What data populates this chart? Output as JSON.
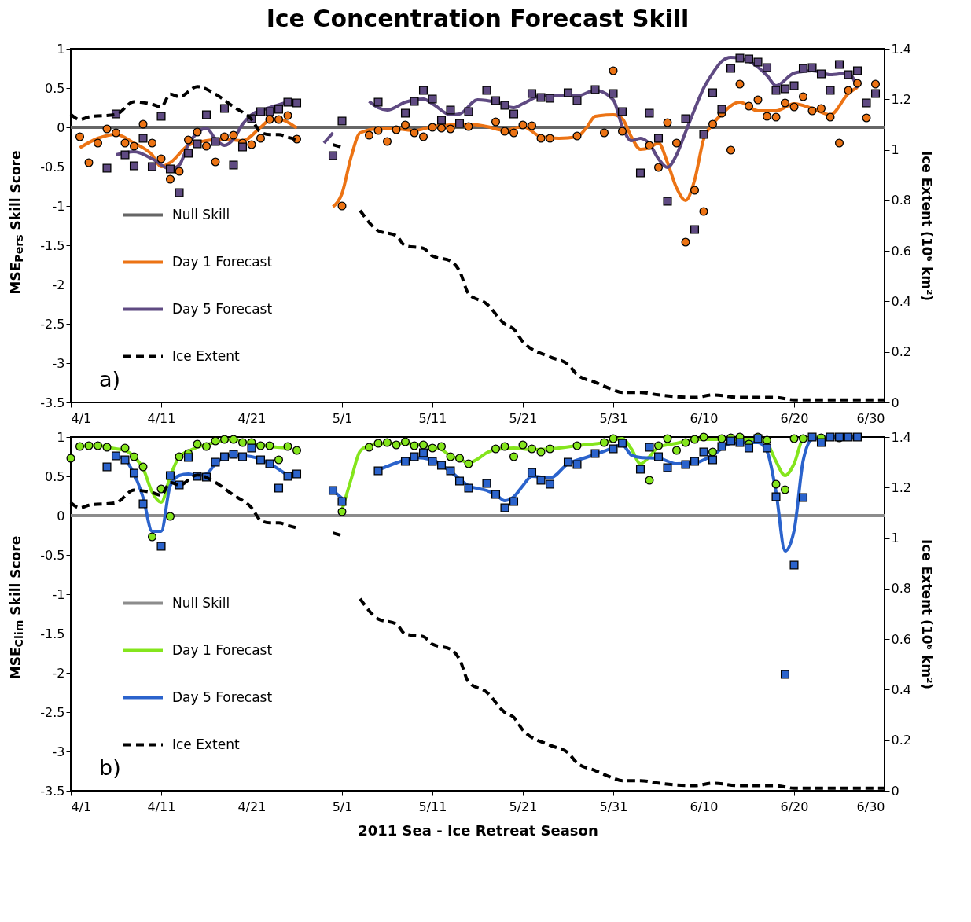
{
  "chart_data": [
    {
      "type": "line",
      "title": "Ice Concentration Forecast Skill",
      "ylabel": "MSE$_{Pers}$ Skill Score",
      "y2label": "Ice Extent (10⁶ km²)",
      "annotations": [
        "a)"
      ],
      "legend": "left",
      "xlim": [
        "--04-01",
        "--06-30"
      ],
      "xticks": [
        {
          "value": "--04-01",
          "label": "4/1"
        },
        {
          "value": "--04-11",
          "label": "4/11"
        },
        {
          "value": "--04-21",
          "label": "4/21"
        },
        {
          "value": "--05-01",
          "label": "5/1"
        },
        {
          "value": "--05-11",
          "label": "5/11"
        },
        {
          "value": "--05-21",
          "label": "5/21"
        },
        {
          "value": "--05-31",
          "label": "5/31"
        },
        {
          "value": "--06-10",
          "label": "6/10"
        },
        {
          "value": "--06-20",
          "label": "6/20"
        },
        {
          "value": "--06-30",
          "label": "6/30"
        }
      ],
      "ylim": [
        -3.5,
        1
      ],
      "yticks": [
        -3.5,
        -3,
        -2.5,
        -2,
        -1.5,
        -1,
        -0.5,
        0,
        0.5,
        1
      ],
      "y2lim": [
        0,
        1.4
      ],
      "y2ticks": [
        0,
        0.2,
        0.4,
        0.6,
        0.8,
        1,
        1.2,
        1.4
      ],
      "x": [
        "--04-02",
        "--04-03",
        "--04-04",
        "--04-05",
        "--04-06",
        "--04-07",
        "--04-08",
        "--04-09",
        "--04-10",
        "--04-11",
        "--04-12",
        "--04-13",
        "--04-14",
        "--04-15",
        "--04-16",
        "--04-17",
        "--04-18",
        "--04-19",
        "--04-20",
        "--04-21",
        "--04-22",
        "--04-23",
        "--04-24",
        "--04-25",
        "--04-26",
        "--04-27",
        "--04-28",
        "--04-29",
        "--04-30",
        "--05-01",
        "--05-02",
        "--05-03",
        "--05-04",
        "--05-05",
        "--05-06",
        "--05-07",
        "--05-08",
        "--05-09",
        "--05-10",
        "--05-11",
        "--05-12",
        "--05-13",
        "--05-14",
        "--05-15",
        "--05-16",
        "--05-17",
        "--05-18",
        "--05-19",
        "--05-20",
        "--05-21",
        "--05-22",
        "--05-23",
        "--05-24",
        "--05-25",
        "--05-26",
        "--05-27",
        "--05-28",
        "--05-29",
        "--05-30",
        "--05-31",
        "--06-01",
        "--06-02",
        "--06-03",
        "--06-04",
        "--06-05",
        "--06-06",
        "--06-07",
        "--06-08",
        "--06-09",
        "--06-10",
        "--06-11",
        "--06-12",
        "--06-13",
        "--06-14",
        "--06-15",
        "--06-16",
        "--06-17",
        "--06-18",
        "--06-19",
        "--06-20",
        "--06-21",
        "--06-22",
        "--06-23",
        "--06-24",
        "--06-25",
        "--06-26",
        "--06-27",
        "--06-28",
        "--06-29"
      ],
      "series": [
        {
          "name": "Null Skill",
          "type": "line",
          "color": "#666666",
          "x": [
            "--04-01",
            "--06-30"
          ],
          "values": [
            0,
            0
          ]
        },
        {
          "name": "Day 1 Forecast",
          "type": "line",
          "color": "#ec7314",
          "x": [
            "--04-02",
            "--04-04",
            "--04-06",
            "--04-08",
            "--04-10",
            "--04-11",
            "--04-12",
            "--04-14",
            "--04-16",
            "--04-18",
            "--04-20",
            "--04-22",
            "--04-23",
            "--04-24",
            "--04-26",
            "--04-28",
            "--04-30",
            "--05-01",
            "--05-02",
            "--05-03",
            "--05-05",
            "--05-07",
            "--05-09",
            "--05-11",
            "--05-13",
            "--05-15",
            "--05-17",
            "--05-19",
            "--05-21",
            "--05-23",
            "--05-25",
            "--05-27",
            "--05-28",
            "--05-29",
            "--05-31",
            "--06-01",
            "--06-02",
            "--06-03",
            "--06-04",
            "--06-05",
            "--06-06",
            "--06-07",
            "--06-08",
            "--06-09",
            "--06-10",
            "--06-11",
            "--06-12",
            "--06-14",
            "--06-16",
            "--06-18",
            "--06-20",
            "--06-22",
            "--06-24",
            "--06-26",
            "--06-27"
          ],
          "values": [
            -0.26,
            -0.14,
            -0.09,
            -0.2,
            -0.35,
            -0.5,
            -0.45,
            -0.23,
            -0.17,
            -0.15,
            -0.17,
            0.0,
            0.09,
            0.1,
            -0.01,
            null,
            -1.01,
            -0.84,
            -0.38,
            -0.07,
            -0.02,
            -0.02,
            -0.04,
            0.01,
            0.03,
            0.04,
            0.01,
            -0.04,
            0.01,
            -0.12,
            -0.14,
            -0.12,
            -0.01,
            0.14,
            0.16,
            0.11,
            -0.12,
            -0.28,
            -0.26,
            -0.2,
            -0.45,
            -0.77,
            -0.93,
            -0.67,
            -0.15,
            0.04,
            0.17,
            0.32,
            0.21,
            0.21,
            0.3,
            0.24,
            0.16,
            0.43,
            0.51
          ]
        },
        {
          "name": "Day 5 Forecast",
          "type": "line",
          "color": "#5f4a82",
          "x": [
            "--04-06",
            "--04-08",
            "--04-10",
            "--04-12",
            "--04-13",
            "--04-14",
            "--04-15",
            "--04-16",
            "--04-17",
            "--04-18",
            "--04-19",
            "--04-20",
            "--04-21",
            "--04-23",
            "--04-25",
            "--04-27",
            "--04-29",
            "--04-30",
            "--05-02",
            "--05-04",
            "--05-05",
            "--05-06",
            "--05-08",
            "--05-10",
            "--05-11",
            "--05-13",
            "--05-14",
            "--05-16",
            "--05-18",
            "--05-20",
            "--05-21",
            "--05-23",
            "--05-25",
            "--05-27",
            "--05-29",
            "--05-31",
            "--06-01",
            "--06-02",
            "--06-03",
            "--06-04",
            "--06-05",
            "--06-06",
            "--06-07",
            "--06-08",
            "--06-09",
            "--06-10",
            "--06-11",
            "--06-12",
            "--06-13",
            "--06-15",
            "--06-17",
            "--06-18",
            "--06-20",
            "--06-22",
            "--06-24",
            "--06-26",
            "--06-27"
          ],
          "values": [
            -0.35,
            -0.31,
            -0.4,
            -0.53,
            -0.48,
            -0.22,
            -0.07,
            -0.01,
            -0.15,
            -0.23,
            -0.15,
            0.04,
            0.16,
            0.25,
            0.32,
            null,
            -0.2,
            -0.07,
            null,
            0.33,
            0.25,
            0.22,
            0.32,
            0.36,
            0.3,
            0.16,
            0.17,
            0.35,
            0.32,
            0.25,
            0.3,
            0.4,
            0.4,
            0.4,
            0.47,
            0.35,
            0.01,
            -0.17,
            -0.14,
            -0.21,
            -0.4,
            -0.51,
            -0.35,
            -0.06,
            0.23,
            0.5,
            0.69,
            0.84,
            0.89,
            0.84,
            0.66,
            0.53,
            0.69,
            0.72,
            0.67,
            0.69,
            0.5
          ]
        },
        {
          "type": "scatter",
          "marker": "circle",
          "color": "#ec7314",
          "values": [
            -0.12,
            -0.45,
            -0.2,
            -0.02,
            -0.07,
            -0.2,
            -0.24,
            0.04,
            -0.2,
            -0.4,
            -0.66,
            -0.56,
            -0.16,
            -0.06,
            -0.24,
            -0.44,
            -0.12,
            -0.1,
            -0.2,
            -0.22,
            -0.14,
            0.1,
            0.1,
            0.15,
            -0.15,
            null,
            null,
            null,
            null,
            -1.0,
            null,
            null,
            -0.1,
            -0.04,
            -0.18,
            -0.03,
            0.03,
            -0.07,
            -0.12,
            0.0,
            -0.01,
            -0.02,
            null,
            0.01,
            null,
            null,
            0.07,
            -0.05,
            -0.07,
            0.03,
            0.02,
            -0.14,
            -0.14,
            null,
            null,
            -0.11,
            null,
            null,
            -0.07,
            0.72,
            -0.05,
            null,
            null,
            -0.23,
            -0.51,
            0.06,
            -0.2,
            -1.46,
            -0.8,
            -1.07,
            0.04,
            0.18,
            -0.29,
            0.55,
            0.27,
            0.35,
            0.14,
            0.13,
            0.31,
            0.26,
            0.39,
            0.21,
            0.24,
            0.13,
            -0.2,
            0.47,
            0.56,
            0.12,
            0.55
          ]
        },
        {
          "type": "scatter",
          "marker": "square",
          "color": "#5f4a82",
          "values": [
            null,
            null,
            null,
            -0.52,
            0.17,
            -0.35,
            -0.49,
            -0.14,
            -0.5,
            0.14,
            -0.53,
            -0.83,
            -0.33,
            -0.21,
            0.16,
            -0.18,
            0.24,
            -0.48,
            -0.25,
            0.11,
            0.2,
            0.2,
            0.23,
            0.32,
            0.31,
            null,
            null,
            null,
            -0.36,
            0.08,
            null,
            null,
            null,
            0.32,
            null,
            null,
            0.18,
            0.33,
            0.47,
            0.36,
            0.09,
            0.22,
            0.05,
            0.2,
            null,
            0.47,
            0.34,
            0.28,
            0.17,
            null,
            0.43,
            0.38,
            0.37,
            null,
            0.44,
            0.34,
            null,
            0.48,
            null,
            0.43,
            0.2,
            null,
            -0.58,
            0.18,
            -0.14,
            -0.94,
            null,
            0.11,
            -1.3,
            -0.09,
            0.44,
            0.23,
            0.75,
            0.88,
            0.87,
            0.83,
            0.76,
            0.47,
            0.49,
            0.53,
            0.75,
            0.76,
            0.68,
            0.47,
            0.8,
            0.67,
            0.72,
            0.31,
            0.43
          ]
        },
        {
          "name": "Ice Extent",
          "type": "line",
          "axis": "y2",
          "line_style": "dashed",
          "color": "#000000",
          "x": [
            "--04-01",
            "--04-02",
            "--04-03",
            "--04-06",
            "--04-08",
            "--04-10",
            "--04-11",
            "--04-12",
            "--04-13",
            "--04-15",
            "--04-17",
            "--04-19",
            "--04-21",
            "--04-22",
            "--04-23",
            "--04-24",
            "--04-25",
            "--04-26",
            "--04-27",
            "--04-30",
            "--05-01",
            "--05-02",
            "--05-03",
            "--05-05",
            "--05-07",
            "--05-08",
            "--05-10",
            "--05-11",
            "--05-13",
            "--05-14",
            "--05-15",
            "--05-17",
            "--05-19",
            "--05-20",
            "--05-21",
            "--05-24",
            "--05-26",
            "--05-27",
            "--05-29",
            "--05-31",
            "--06-01",
            "--06-03",
            "--06-05",
            "--06-09",
            "--06-11",
            "--06-14",
            "--06-18",
            "--06-20",
            "--06-30"
          ],
          "values": [
            1.14,
            1.12,
            1.13,
            1.14,
            1.19,
            1.18,
            1.17,
            1.22,
            1.21,
            1.25,
            1.22,
            1.17,
            1.12,
            1.07,
            1.06,
            1.06,
            1.05,
            1.04,
            null,
            1.02,
            1.01,
            null,
            0.76,
            0.68,
            0.66,
            0.62,
            0.61,
            0.58,
            0.56,
            0.52,
            0.43,
            0.39,
            0.31,
            0.29,
            0.24,
            0.18,
            0.15,
            0.11,
            0.08,
            0.05,
            0.04,
            0.04,
            0.03,
            0.02,
            0.03,
            0.02,
            0.02,
            0.01,
            0.01
          ]
        }
      ]
    },
    {
      "type": "line",
      "xlabel": "2011 Sea - Ice Retreat Season",
      "ylabel": "MSE$_{Clim}$ Skill Score",
      "y2label": "Ice Extent (10⁶ km²)",
      "annotations": [
        "b)"
      ],
      "legend": "left",
      "xlim": [
        "--04-01",
        "--06-30"
      ],
      "xticks": [
        {
          "value": "--04-01",
          "label": "4/1"
        },
        {
          "value": "--04-11",
          "label": "4/11"
        },
        {
          "value": "--04-21",
          "label": "4/21"
        },
        {
          "value": "--05-01",
          "label": "5/1"
        },
        {
          "value": "--05-11",
          "label": "5/11"
        },
        {
          "value": "--05-21",
          "label": "5/21"
        },
        {
          "value": "--05-31",
          "label": "5/31"
        },
        {
          "value": "--06-10",
          "label": "6/10"
        },
        {
          "value": "--06-20",
          "label": "6/20"
        },
        {
          "value": "--06-30",
          "label": "6/30"
        }
      ],
      "ylim": [
        -3.5,
        1
      ],
      "yticks": [
        -3.5,
        -3,
        -2.5,
        -2,
        -1.5,
        -1,
        -0.5,
        0,
        0.5,
        1
      ],
      "y2lim": [
        0,
        1.4
      ],
      "y2ticks": [
        0,
        0.2,
        0.4,
        0.6,
        0.8,
        1,
        1.2,
        1.4
      ],
      "x": [
        "--04-01",
        "--04-02",
        "--04-03",
        "--04-04",
        "--04-05",
        "--04-06",
        "--04-07",
        "--04-08",
        "--04-09",
        "--04-10",
        "--04-11",
        "--04-12",
        "--04-13",
        "--04-14",
        "--04-15",
        "--04-16",
        "--04-17",
        "--04-18",
        "--04-19",
        "--04-20",
        "--04-21",
        "--04-22",
        "--04-23",
        "--04-24",
        "--04-25",
        "--04-26",
        "--04-27",
        "--04-28",
        "--04-29",
        "--04-30",
        "--05-01",
        "--05-02",
        "--05-03",
        "--05-04",
        "--05-05",
        "--05-06",
        "--05-07",
        "--05-08",
        "--05-09",
        "--05-10",
        "--05-11",
        "--05-12",
        "--05-13",
        "--05-14",
        "--05-15",
        "--05-16",
        "--05-17",
        "--05-18",
        "--05-19",
        "--05-20",
        "--05-21",
        "--05-22",
        "--05-23",
        "--05-24",
        "--05-25",
        "--05-26",
        "--05-27",
        "--05-28",
        "--05-29",
        "--05-30",
        "--05-31",
        "--06-01",
        "--06-02",
        "--06-03",
        "--06-04",
        "--06-05",
        "--06-06",
        "--06-07",
        "--06-08",
        "--06-09",
        "--06-10",
        "--06-11",
        "--06-12",
        "--06-13",
        "--06-14",
        "--06-15",
        "--06-16",
        "--06-17",
        "--06-18",
        "--06-19",
        "--06-20",
        "--06-21",
        "--06-22",
        "--06-23",
        "--06-24",
        "--06-25",
        "--06-26",
        "--06-27"
      ],
      "series": [
        {
          "name": "Null Skill",
          "type": "line",
          "color": "#8c8c8c",
          "x": [
            "--04-01",
            "--06-30"
          ],
          "values": [
            0,
            0
          ]
        },
        {
          "name": "Day 1 Forecast",
          "type": "line",
          "color": "#84e51c",
          "x": [
            "--04-02",
            "--04-04",
            "--04-06",
            "--04-07",
            "--04-08",
            "--04-09",
            "--04-10",
            "--04-11",
            "--04-12",
            "--04-13",
            "--04-14",
            "--04-15",
            "--04-17",
            "--04-19",
            "--04-21",
            "--04-23",
            "--04-25",
            "--04-27",
            "--05-01",
            "--05-02",
            "--05-03",
            "--05-04",
            "--05-06",
            "--05-08",
            "--05-10",
            "--05-12",
            "--05-13",
            "--05-14",
            "--05-15",
            "--05-16",
            "--05-17",
            "--05-18",
            "--05-20",
            "--05-22",
            "--05-24",
            "--05-27",
            "--05-30",
            "--06-01",
            "--06-02",
            "--06-03",
            "--06-04",
            "--06-05",
            "--06-07",
            "--06-09",
            "--06-11",
            "--06-13",
            "--06-16",
            "--06-17",
            "--06-18",
            "--06-19",
            "--06-20",
            "--06-21",
            "--06-23"
          ],
          "values": [
            0.88,
            0.89,
            0.85,
            0.83,
            0.75,
            0.6,
            0.3,
            0.17,
            0.5,
            0.75,
            0.82,
            0.87,
            0.93,
            0.97,
            0.92,
            0.88,
            0.86,
            null,
            0.07,
            0.46,
            0.82,
            0.89,
            0.92,
            0.92,
            0.89,
            0.84,
            0.76,
            0.72,
            0.67,
            0.72,
            0.8,
            0.84,
            0.86,
            0.84,
            0.85,
            0.89,
            0.93,
            0.98,
            0.85,
            0.66,
            0.75,
            0.87,
            0.92,
            0.97,
            0.97,
            0.97,
            0.97,
            0.92,
            0.69,
            0.51,
            0.66,
            0.97,
            1.0
          ]
        },
        {
          "name": "Day 5 Forecast",
          "type": "line",
          "color": "#2b63cc",
          "x": [
            "--04-06",
            "--04-07",
            "--04-08",
            "--04-09",
            "--04-10",
            "--04-11",
            "--04-12",
            "--04-13",
            "--04-14",
            "--04-15",
            "--04-16",
            "--04-17",
            "--04-19",
            "--04-21",
            "--04-23",
            "--04-25",
            "--04-27",
            "--04-30",
            "--05-01",
            "--05-02",
            "--05-05",
            "--05-07",
            "--05-09",
            "--05-11",
            "--05-13",
            "--05-15",
            "--05-17",
            "--05-18",
            "--05-19",
            "--05-20",
            "--05-21",
            "--05-22",
            "--05-24",
            "--05-26",
            "--05-28",
            "--05-30",
            "--06-01",
            "--06-02",
            "--06-03",
            "--06-05",
            "--06-07",
            "--06-09",
            "--06-11",
            "--06-13",
            "--06-15",
            "--06-16",
            "--06-17",
            "--06-18",
            "--06-19",
            "--06-20",
            "--06-21",
            "--06-22",
            "--06-24",
            "--06-27"
          ],
          "values": [
            0.76,
            0.71,
            0.53,
            0.23,
            -0.2,
            -0.2,
            0.38,
            0.51,
            0.53,
            0.51,
            0.53,
            0.66,
            0.77,
            0.75,
            0.66,
            0.51,
            null,
            0.32,
            0.22,
            null,
            0.58,
            0.67,
            0.74,
            0.71,
            0.56,
            0.38,
            0.32,
            0.27,
            0.19,
            0.24,
            0.38,
            0.5,
            0.48,
            0.66,
            0.74,
            0.82,
            0.9,
            0.77,
            0.74,
            0.73,
            0.66,
            0.67,
            0.77,
            0.92,
            0.93,
            0.93,
            0.82,
            0.3,
            -0.45,
            -0.19,
            0.7,
            0.97,
            1.0,
            1.0
          ]
        },
        {
          "type": "scatter",
          "marker": "circle",
          "color": "#84e51c",
          "values": [
            0.73,
            0.88,
            0.89,
            0.89,
            0.87,
            null,
            0.86,
            0.75,
            0.62,
            -0.27,
            0.34,
            -0.01,
            0.75,
            0.79,
            0.91,
            0.88,
            0.95,
            0.97,
            0.97,
            0.93,
            0.93,
            0.89,
            0.89,
            0.71,
            0.88,
            0.83,
            null,
            null,
            null,
            null,
            0.05,
            null,
            null,
            0.87,
            0.92,
            0.93,
            0.9,
            0.94,
            0.89,
            0.9,
            0.86,
            0.88,
            0.75,
            0.73,
            0.66,
            null,
            null,
            0.85,
            0.88,
            0.75,
            0.9,
            0.85,
            0.81,
            0.85,
            null,
            null,
            0.89,
            null,
            null,
            0.93,
            0.98,
            null,
            null,
            null,
            0.45,
            0.89,
            0.98,
            0.83,
            0.93,
            0.97,
            1.0,
            0.81,
            0.98,
            0.99,
            1.0,
            0.91,
            1.0,
            0.96,
            0.4,
            0.33,
            0.98,
            0.98,
            null,
            0.99,
            null,
            0.99,
            null,
            null
          ]
        },
        {
          "type": "scatter",
          "marker": "square",
          "color": "#2b63cc",
          "values": [
            null,
            null,
            null,
            null,
            0.62,
            0.76,
            0.71,
            0.54,
            0.15,
            null,
            -0.39,
            0.51,
            0.39,
            0.74,
            0.5,
            0.49,
            0.68,
            0.75,
            0.78,
            0.75,
            0.86,
            0.71,
            0.66,
            0.35,
            0.5,
            0.53,
            null,
            null,
            null,
            0.32,
            0.18,
            null,
            null,
            null,
            0.57,
            null,
            null,
            0.69,
            0.75,
            0.8,
            0.69,
            0.64,
            0.57,
            0.44,
            0.35,
            null,
            0.41,
            0.27,
            0.1,
            0.18,
            null,
            0.55,
            0.45,
            0.4,
            null,
            0.68,
            0.65,
            null,
            0.79,
            null,
            0.85,
            0.92,
            null,
            0.59,
            0.87,
            0.75,
            0.61,
            null,
            0.65,
            0.69,
            0.81,
            0.71,
            0.88,
            0.95,
            0.93,
            0.86,
            0.98,
            0.86,
            0.24,
            -2.02,
            -0.63,
            0.23,
            1.0,
            0.93,
            1.0,
            1.0,
            1.0,
            1.0
          ]
        },
        {
          "name": "Ice Extent",
          "type": "line",
          "axis": "y2",
          "line_style": "dashed",
          "color": "#000000",
          "x": [
            "--04-01",
            "--04-02",
            "--04-03",
            "--04-06",
            "--04-08",
            "--04-10",
            "--04-11",
            "--04-12",
            "--04-13",
            "--04-15",
            "--04-17",
            "--04-19",
            "--04-21",
            "--04-22",
            "--04-23",
            "--04-24",
            "--04-25",
            "--04-26",
            "--04-27",
            "--04-30",
            "--05-01",
            "--05-02",
            "--05-03",
            "--05-05",
            "--05-07",
            "--05-08",
            "--05-10",
            "--05-11",
            "--05-13",
            "--05-14",
            "--05-15",
            "--05-17",
            "--05-19",
            "--05-20",
            "--05-21",
            "--05-24",
            "--05-26",
            "--05-27",
            "--05-29",
            "--05-31",
            "--06-01",
            "--06-03",
            "--06-05",
            "--06-09",
            "--06-11",
            "--06-14",
            "--06-18",
            "--06-20",
            "--06-30"
          ],
          "values": [
            1.14,
            1.12,
            1.13,
            1.14,
            1.19,
            1.18,
            1.17,
            1.22,
            1.21,
            1.25,
            1.22,
            1.17,
            1.12,
            1.07,
            1.06,
            1.06,
            1.05,
            1.04,
            null,
            1.02,
            1.01,
            null,
            0.76,
            0.68,
            0.66,
            0.62,
            0.61,
            0.58,
            0.56,
            0.52,
            0.43,
            0.39,
            0.31,
            0.29,
            0.24,
            0.18,
            0.15,
            0.11,
            0.08,
            0.05,
            0.04,
            0.04,
            0.03,
            0.02,
            0.03,
            0.02,
            0.02,
            0.01,
            0.01
          ]
        }
      ]
    }
  ]
}
